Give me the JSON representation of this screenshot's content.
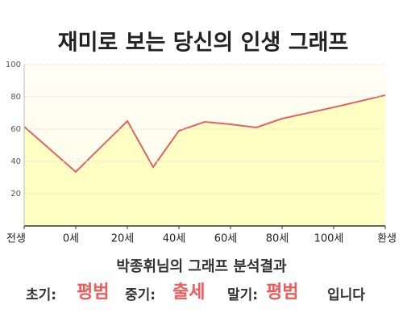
{
  "chart_data": {
    "type": "area",
    "title": "재미로 보는 당신의 인생 그래프",
    "x": [
      -20,
      0,
      20,
      30,
      40,
      50,
      60,
      70,
      80,
      100,
      120
    ],
    "values": [
      61.5,
      33.5,
      65,
      36.5,
      59,
      64.5,
      63,
      61,
      66.5,
      73.5,
      81
    ],
    "color": "#e06464",
    "fill": "#ffffc4",
    "xlim": [
      -20,
      120
    ],
    "xticks": [
      {
        "value": -20,
        "label": "전생"
      },
      {
        "value": 0,
        "label": "0세"
      },
      {
        "value": 20,
        "label": "20세"
      },
      {
        "value": 40,
        "label": "40세"
      },
      {
        "value": 60,
        "label": "60세"
      },
      {
        "value": 80,
        "label": "80세"
      },
      {
        "value": 100,
        "label": "100세"
      },
      {
        "value": 120,
        "label": "환생"
      }
    ],
    "ylim": [
      0,
      100
    ],
    "yticks": [
      20,
      40,
      60,
      80,
      100
    ],
    "grid": true
  },
  "result": {
    "heading": "박종휘님의 그래프 분석결과",
    "early_label": "초기:",
    "early": "평범",
    "middle_label": "중기:",
    "middle": "출세",
    "late_label": "말기:",
    "late": "평범",
    "ending": "입니다"
  }
}
